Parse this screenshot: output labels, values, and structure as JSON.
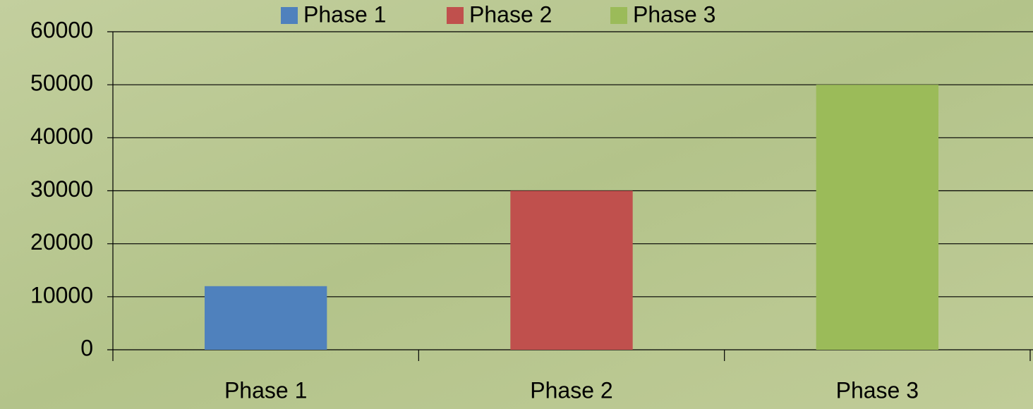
{
  "chart_data": {
    "type": "bar",
    "categories": [
      "Phase 1",
      "Phase 2",
      "Phase 3"
    ],
    "values": [
      12000,
      30000,
      50000
    ],
    "colors": [
      "#4f81bd",
      "#c0504d",
      "#9bbb59"
    ],
    "ylim": [
      0,
      60000
    ],
    "yticks": [
      0,
      10000,
      20000,
      30000,
      40000,
      50000,
      60000
    ],
    "grid": true,
    "legend": "top"
  }
}
